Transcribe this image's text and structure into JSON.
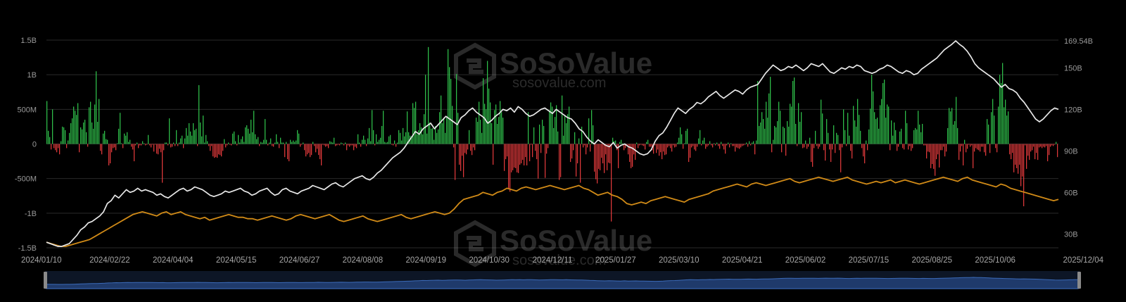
{
  "watermark": {
    "brand": "SoSoValue",
    "url": "sosovalue.com"
  },
  "colors": {
    "background": "#000000",
    "inflow": "#2fbf4a",
    "outflow": "#e0393b",
    "total_net_assets_line": "#e8e8e8",
    "cumulative_inflow_line": "#d08a17",
    "grid": "#2a2a2a",
    "navigator_fill": "#1f3a6b"
  },
  "chart_data": {
    "type": "bar+line",
    "title": "",
    "x_ticks": [
      "2024/01/10",
      "2024/02/22",
      "2024/04/04",
      "2024/05/15",
      "2024/06/27",
      "2024/08/08",
      "2024/09/19",
      "2024/10/30",
      "2024/12/11",
      "2025/01/27",
      "2025/03/10",
      "2025/04/21",
      "2025/06/02",
      "2025/07/15",
      "2025/08/25",
      "2025/10/06",
      "2025/12/04"
    ],
    "y_left": {
      "ticks": [
        "1.5B",
        "1B",
        "500M",
        "0",
        "-500M",
        "-1B",
        "-1.5B"
      ],
      "range": [
        -1500,
        1500
      ],
      "unit": "M"
    },
    "y_right": {
      "ticks": [
        "169.54B",
        "150B",
        "120B",
        "90B",
        "60B",
        "30B"
      ],
      "tick_values": [
        169.54,
        150,
        120,
        90,
        60,
        30
      ],
      "range": [
        20,
        170
      ],
      "unit": "B"
    },
    "series": [
      {
        "type": "bar",
        "axis": "left",
        "unit": "M",
        "values": [
          620,
          190,
          100,
          -80,
          500,
          -60,
          -90,
          -120,
          -60,
          -150,
          40,
          250,
          240,
          200,
          -60,
          50,
          160,
          300,
          370,
          540,
          480,
          420,
          590,
          -120,
          240,
          210,
          310,
          350,
          170,
          -40,
          530,
          610,
          310,
          220,
          570,
          1050,
          320,
          650,
          -100,
          -150,
          150,
          190,
          70,
          60,
          -310,
          -280,
          -120,
          -60,
          -50,
          -90,
          10,
          220,
          450,
          10,
          -60,
          150,
          120,
          170,
          30,
          60,
          -40,
          -80,
          -250,
          -20,
          20,
          -60,
          -20,
          -20,
          40,
          10,
          -20,
          -10,
          130,
          -20,
          -50,
          -10,
          -110,
          -10,
          -140,
          -150,
          -70,
          -120,
          -560,
          -90,
          20,
          20,
          -20,
          370,
          -50,
          -40,
          20,
          -30,
          200,
          -30,
          20,
          80,
          120,
          -60,
          80,
          230,
          120,
          300,
          180,
          120,
          300,
          200,
          220,
          -30,
          850,
          310,
          110,
          410,
          20,
          130,
          40,
          -30,
          -100,
          -30,
          -180,
          -200,
          -190,
          -200,
          -150,
          -160,
          -180,
          -100,
          70,
          -50,
          -20,
          20,
          -10,
          -20,
          150,
          180,
          40,
          -20,
          130,
          20,
          70,
          110,
          30,
          240,
          270,
          220,
          150,
          350,
          170,
          480,
          140,
          70,
          100,
          -30,
          30,
          20,
          60,
          360,
          60,
          -20,
          20,
          80,
          -30,
          -40,
          20,
          140,
          30,
          -60,
          90,
          20,
          20,
          -190,
          30,
          -220,
          -250,
          60,
          30,
          50,
          30,
          50,
          200,
          150,
          -40,
          -10,
          20,
          -90,
          -180,
          -150,
          -130,
          -190,
          -160,
          30,
          -30,
          -120,
          -70,
          -160,
          -220,
          -310,
          -10,
          -20,
          -40,
          -30,
          -60,
          40,
          30,
          20,
          90,
          -30,
          -20,
          -10,
          -20,
          20,
          10,
          -20,
          20,
          -90,
          -20,
          -40,
          -20,
          -20,
          -90,
          -40,
          -60,
          140,
          20,
          -40,
          60,
          120,
          60,
          -30,
          80,
          230,
          40,
          490,
          200,
          -20,
          140,
          30,
          60,
          90,
          260,
          480,
          30,
          20,
          30,
          110,
          130,
          -10,
          -20,
          50,
          -40,
          20,
          200,
          160,
          50,
          230,
          110,
          170,
          470,
          170,
          120,
          110,
          590,
          520,
          610,
          140,
          200,
          300,
          240,
          140,
          430,
          1000,
          150,
          1400,
          310,
          220,
          230,
          60,
          260,
          160,
          210,
          460,
          700,
          300,
          380,
          160,
          400,
          1370,
          1110,
          940,
          550,
          -50,
          -520,
          1010,
          450,
          -300,
          -390,
          -170,
          -480,
          -130,
          -150,
          -80,
          200,
          -100,
          -160,
          -50,
          -90,
          380,
          320,
          610,
          350,
          160,
          950,
          580,
          500,
          1200,
          800,
          600,
          300,
          -300,
          490,
          570,
          290,
          390,
          620,
          460,
          380,
          -390,
          -220,
          -180,
          -650,
          -690,
          -410,
          -380,
          -340,
          -350,
          -410,
          -420,
          -300,
          -280,
          -230,
          -310,
          -190,
          -310,
          460,
          -250,
          -10,
          -190,
          240,
          -100,
          -220,
          -500,
          280,
          -130,
          350,
          260,
          -490,
          -140,
          -60,
          490,
          600,
          540,
          230,
          390,
          560,
          180,
          -520,
          -480,
          700,
          120,
          410,
          300,
          430,
          540,
          -260,
          -210,
          -90,
          170,
          -470,
          -280,
          80,
          -560,
          250,
          -50,
          -20,
          -150,
          -50,
          370,
          -110,
          490,
          270,
          -400,
          -510,
          -570,
          -360,
          -380,
          -200,
          -280,
          -420,
          -150,
          -380,
          -270,
          -280,
          -1120,
          90,
          40,
          50,
          -90,
          -350,
          30,
          60,
          10,
          -90,
          -60,
          -20,
          -150,
          -260,
          -350,
          -330,
          -150,
          -230,
          20,
          -60,
          -20,
          -10,
          -20,
          -30,
          -80,
          30,
          60,
          -40,
          -40,
          -90,
          -140,
          -20,
          -130,
          -80,
          -170,
          -120,
          -220,
          -110,
          -160,
          -150,
          -50,
          -30,
          -60,
          -110,
          -20,
          -50,
          -40,
          20,
          90,
          240,
          140,
          -70,
          10,
          190,
          220,
          -260,
          -200,
          -50,
          -30,
          -80,
          -100,
          -40,
          80,
          200,
          -20,
          50,
          90,
          -70,
          -40,
          -20,
          40,
          -20,
          -50,
          10,
          -20,
          20,
          -30,
          -70,
          30,
          -30,
          -80,
          -140,
          -20,
          20,
          -50,
          10,
          -30,
          -30,
          -110,
          -50,
          -60,
          -70,
          -50,
          -30,
          -20,
          -10,
          20,
          -40,
          40,
          -20,
          20,
          40,
          -150,
          50,
          910,
          260,
          310,
          460,
          360,
          220,
          610,
          380,
          730,
          970,
          -120,
          60,
          260,
          240,
          330,
          610,
          480,
          -120,
          250,
          230,
          -170,
          330,
          250,
          580,
          540,
          910,
          960,
          290,
          -30,
          590,
          320,
          460,
          -60,
          -50,
          50,
          -70,
          -40,
          90,
          -260,
          -330,
          -60,
          190,
          -30,
          -70,
          -40,
          640,
          440,
          -90,
          -240,
          360,
          160,
          -80,
          -260,
          -80,
          270,
          -130,
          160,
          130,
          -90,
          -410,
          -50,
          500,
          200,
          -30,
          450,
          120,
          -100,
          -210,
          550,
          340,
          250,
          650,
          420,
          190,
          -60,
          -180,
          -280,
          50,
          -90,
          210,
          510,
          1000,
          760,
          460,
          360,
          380,
          220,
          560,
          650,
          880,
          930,
          380,
          570,
          540,
          -90,
          340,
          120,
          310,
          200,
          -100,
          -40,
          180,
          220,
          -60,
          -80,
          480,
          300,
          -80,
          -30,
          -100,
          -60,
          200,
          230,
          210,
          480,
          280,
          170,
          290,
          -20,
          -20,
          -210,
          -110,
          -120,
          -350,
          -290,
          -360,
          -460,
          -220,
          -150,
          -340,
          -90,
          -90,
          -40,
          -180,
          -110,
          230,
          520,
          470,
          520,
          280,
          330,
          680,
          230,
          -230,
          -110,
          -30,
          -310,
          60,
          -120,
          -70,
          -10,
          -40,
          -20,
          -350,
          -110,
          -60,
          -80,
          -90,
          -110,
          -40,
          -40,
          -120,
          -170,
          360,
          280,
          -130,
          460,
          650,
          410,
          -60,
          -120,
          540,
          1000,
          880,
          1170,
          530,
          640,
          410,
          470,
          -150,
          -220,
          -130,
          -410,
          -300,
          -350,
          -430,
          -300,
          -610,
          -470,
          -900,
          -20,
          -360,
          -170,
          -230,
          -110,
          -90,
          -40,
          -220,
          -130,
          -230,
          -50,
          -40,
          -60,
          -40,
          -50,
          -30,
          -250,
          -160,
          -40,
          -20,
          -30,
          -10,
          30,
          -190
        ],
        "color_positive": "#2fbf4a",
        "color_negative": "#e0393b"
      },
      {
        "type": "line",
        "axis": "right",
        "unit": "B",
        "color": "#e8e8e8",
        "values": [
          24,
          23,
          22,
          21,
          21,
          22,
          23,
          26,
          29,
          33,
          35,
          38,
          39,
          41,
          43,
          46,
          52,
          54,
          58,
          56,
          59,
          62,
          60,
          61,
          63,
          61,
          62,
          61,
          60,
          58,
          59,
          57,
          56,
          58,
          60,
          62,
          63,
          61,
          62,
          64,
          63,
          62,
          60,
          58,
          57,
          58,
          59,
          61,
          60,
          61,
          62,
          63,
          61,
          60,
          58,
          59,
          61,
          62,
          63,
          60,
          58,
          59,
          62,
          63,
          61,
          60,
          59,
          61,
          62,
          63,
          65,
          64,
          63,
          62,
          64,
          66,
          67,
          65,
          64,
          66,
          68,
          70,
          71,
          72,
          70,
          69,
          71,
          74,
          76,
          79,
          82,
          85,
          87,
          89,
          92,
          96,
          100,
          104,
          102,
          106,
          108,
          110,
          106,
          109,
          112,
          115,
          113,
          111,
          109,
          114,
          116,
          119,
          121,
          118,
          116,
          114,
          110,
          112,
          115,
          117,
          120,
          119,
          121,
          118,
          122,
          120,
          117,
          115,
          116,
          118,
          120,
          121,
          119,
          117,
          120,
          118,
          116,
          114,
          113,
          110,
          106,
          104,
          100,
          97,
          95,
          98,
          96,
          94,
          93,
          96,
          92,
          94,
          95,
          93,
          92,
          90,
          88,
          87,
          88,
          91,
          97,
          101,
          103,
          107,
          112,
          117,
          121,
          119,
          117,
          120,
          122,
          125,
          124,
          126,
          129,
          131,
          133,
          130,
          128,
          130,
          132,
          134,
          133,
          131,
          134,
          136,
          137,
          138,
          142,
          146,
          149,
          152,
          150,
          148,
          149,
          151,
          150,
          152,
          150,
          148,
          150,
          153,
          152,
          151,
          153,
          150,
          147,
          146,
          148,
          150,
          149,
          151,
          150,
          152,
          151,
          148,
          147,
          146,
          147,
          149,
          150,
          152,
          151,
          149,
          147,
          146,
          148,
          147,
          145,
          146,
          149,
          151,
          153,
          155,
          157,
          160,
          163,
          165,
          167,
          169.5,
          167,
          165,
          162,
          158,
          153,
          150,
          148,
          146,
          144,
          142,
          139,
          136,
          138,
          135,
          134,
          132,
          128,
          125,
          121,
          117,
          113,
          111,
          113,
          116,
          119,
          121,
          120
        ]
      },
      {
        "type": "line",
        "axis": "right",
        "unit": "B",
        "color": "#d08a17",
        "values": [
          24,
          23,
          22,
          21,
          21,
          22,
          23,
          24,
          25,
          26,
          28,
          30,
          32,
          34,
          36,
          38,
          40,
          42,
          44,
          45,
          46,
          45,
          44,
          43,
          45,
          46,
          44,
          45,
          46,
          44,
          43,
          42,
          41,
          42,
          40,
          41,
          42,
          43,
          44,
          43,
          42,
          42,
          41,
          41,
          40,
          41,
          42,
          43,
          42,
          41,
          40,
          41,
          43,
          44,
          43,
          42,
          41,
          42,
          43,
          44,
          42,
          40,
          39,
          40,
          41,
          42,
          43,
          41,
          40,
          39,
          40,
          41,
          42,
          43,
          44,
          42,
          41,
          42,
          43,
          44,
          45,
          46,
          45,
          44,
          45,
          48,
          52,
          55,
          56,
          57,
          58,
          60,
          59,
          58,
          60,
          61,
          63,
          62,
          61,
          63,
          64,
          63,
          62,
          63,
          64,
          65,
          64,
          63,
          62,
          63,
          64,
          65,
          63,
          62,
          60,
          58,
          59,
          60,
          58,
          57,
          55,
          52,
          51,
          52,
          53,
          52,
          54,
          55,
          56,
          57,
          56,
          55,
          54,
          53,
          55,
          56,
          57,
          58,
          59,
          61,
          62,
          63,
          64,
          65,
          66,
          65,
          64,
          66,
          67,
          66,
          65,
          66,
          67,
          68,
          69,
          70,
          68,
          67,
          68,
          69,
          70,
          71,
          70,
          69,
          68,
          69,
          70,
          71,
          69,
          68,
          67,
          66,
          67,
          68,
          67,
          68,
          69,
          67,
          68,
          69,
          68,
          67,
          66,
          67,
          68,
          69,
          70,
          71,
          70,
          69,
          68,
          70,
          71,
          69,
          68,
          67,
          66,
          65,
          64,
          66,
          65,
          63,
          62,
          61,
          60,
          59,
          58,
          57,
          56,
          55,
          54,
          55
        ]
      }
    ]
  }
}
